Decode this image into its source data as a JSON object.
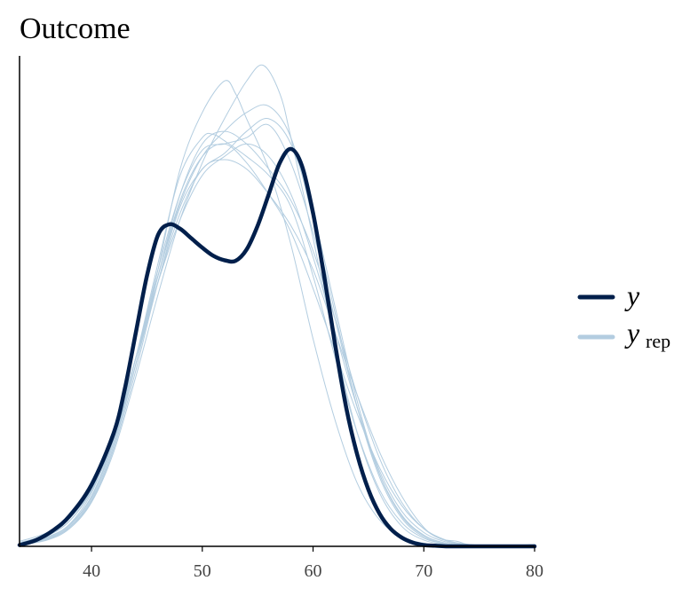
{
  "chart_data": {
    "type": "line",
    "title": "Outcome",
    "xlabel": "",
    "ylabel": "",
    "xlim": [
      33.5,
      80
    ],
    "ylim": [
      0,
      0.078
    ],
    "x_ticks": [
      40,
      50,
      60,
      70,
      80
    ],
    "grid": false,
    "y_axis_labels": false,
    "legend_position": "right",
    "series": [
      {
        "name": "y",
        "color": "#011f4b",
        "role": "observed",
        "x": [
          33.5,
          35,
          36.5,
          38,
          40,
          42,
          43,
          44,
          45,
          46,
          47,
          48,
          49,
          50,
          51,
          52,
          53,
          54,
          55,
          56,
          57,
          58,
          59,
          60,
          61,
          62,
          63,
          64,
          65,
          66,
          67,
          68,
          69,
          70,
          71,
          72,
          74,
          76,
          78,
          80
        ],
        "y": [
          0.0002,
          0.001,
          0.0025,
          0.0048,
          0.0098,
          0.018,
          0.025,
          0.034,
          0.043,
          0.0495,
          0.0512,
          0.0505,
          0.049,
          0.0475,
          0.0462,
          0.0455,
          0.0454,
          0.0472,
          0.051,
          0.056,
          0.061,
          0.0632,
          0.0605,
          0.053,
          0.043,
          0.032,
          0.022,
          0.0145,
          0.009,
          0.0052,
          0.0028,
          0.0014,
          0.0006,
          0.0002,
          0.0001,
          0,
          0,
          0,
          0,
          0
        ]
      },
      {
        "name": "y_rep",
        "color": "#b3cde0",
        "role": "replicated",
        "x": [
          33.5,
          36,
          38,
          40,
          42,
          44,
          46,
          48,
          50,
          52,
          54,
          56,
          58,
          60,
          62,
          64,
          66,
          68,
          70,
          72,
          74,
          76,
          78,
          80
        ],
        "y": [
          0.0006,
          0.0018,
          0.004,
          0.009,
          0.018,
          0.03,
          0.043,
          0.0545,
          0.062,
          0.066,
          0.069,
          0.07,
          0.065,
          0.052,
          0.037,
          0.022,
          0.011,
          0.0045,
          0.0015,
          0.0004,
          0.0001,
          0,
          0,
          0
        ]
      },
      {
        "name": "y_rep",
        "color": "#b3cde0",
        "role": "replicated",
        "x": [
          33.5,
          36,
          38,
          40,
          42,
          44,
          46,
          48,
          50,
          52,
          53,
          54,
          56,
          58,
          60,
          62,
          64,
          66,
          68,
          70,
          72,
          74,
          76,
          78,
          80
        ],
        "y": [
          0.0003,
          0.0012,
          0.003,
          0.0075,
          0.016,
          0.029,
          0.044,
          0.06,
          0.069,
          0.074,
          0.072,
          0.068,
          0.06,
          0.048,
          0.033,
          0.02,
          0.01,
          0.0042,
          0.0015,
          0.0005,
          0.0001,
          0,
          0,
          0,
          0
        ]
      },
      {
        "name": "y_rep",
        "color": "#b3cde0",
        "role": "replicated",
        "x": [
          33.5,
          36,
          38,
          40,
          42,
          44,
          46,
          48,
          50,
          52,
          54,
          55.5,
          57,
          58,
          60,
          62,
          64,
          66,
          68,
          70,
          72,
          74,
          76,
          78,
          80
        ],
        "y": [
          0.0002,
          0.001,
          0.0028,
          0.007,
          0.015,
          0.027,
          0.04,
          0.052,
          0.061,
          0.068,
          0.074,
          0.0765,
          0.072,
          0.065,
          0.049,
          0.032,
          0.018,
          0.0085,
          0.0032,
          0.001,
          0.0003,
          0.0001,
          0,
          0,
          0
        ]
      },
      {
        "name": "y_rep",
        "color": "#b3cde0",
        "role": "replicated",
        "x": [
          33.5,
          36,
          38,
          40,
          42,
          44,
          46,
          48,
          50,
          52,
          54,
          56,
          58,
          60,
          62,
          64,
          66,
          68,
          70,
          72,
          74,
          76,
          78,
          80
        ],
        "y": [
          0.0005,
          0.0015,
          0.0035,
          0.0085,
          0.0175,
          0.03,
          0.044,
          0.056,
          0.063,
          0.064,
          0.065,
          0.067,
          0.061,
          0.05,
          0.036,
          0.022,
          0.0115,
          0.005,
          0.0018,
          0.0005,
          0.0001,
          0,
          0,
          0
        ]
      },
      {
        "name": "y_rep",
        "color": "#b3cde0",
        "role": "replicated",
        "x": [
          33.5,
          36,
          38,
          40,
          42,
          44,
          46,
          48,
          50,
          51,
          52,
          54,
          56,
          58,
          60,
          62,
          64,
          66,
          68,
          70,
          72,
          74,
          76,
          78,
          80
        ],
        "y": [
          0.0004,
          0.0014,
          0.0034,
          0.008,
          0.017,
          0.03,
          0.045,
          0.059,
          0.065,
          0.0655,
          0.0645,
          0.062,
          0.059,
          0.054,
          0.043,
          0.03,
          0.018,
          0.009,
          0.0038,
          0.0013,
          0.0004,
          0.0001,
          0,
          0,
          0
        ]
      },
      {
        "name": "y_rep",
        "color": "#b3cde0",
        "role": "replicated",
        "x": [
          33.5,
          36,
          38,
          40,
          42,
          44,
          46,
          48,
          50,
          52,
          54,
          56,
          58,
          60,
          62,
          64,
          66,
          68,
          70,
          72,
          74,
          76,
          78,
          80
        ],
        "y": [
          0.0008,
          0.0022,
          0.0048,
          0.0095,
          0.018,
          0.03,
          0.043,
          0.055,
          0.062,
          0.064,
          0.061,
          0.056,
          0.05,
          0.041,
          0.031,
          0.021,
          0.0125,
          0.0065,
          0.0028,
          0.001,
          0.0003,
          0.0001,
          0.0001,
          0.0003
        ]
      },
      {
        "name": "y_rep",
        "color": "#b3cde0",
        "role": "replicated",
        "x": [
          33.5,
          36,
          38,
          40,
          42,
          44,
          46,
          48,
          50,
          52,
          54,
          56,
          58,
          60,
          62,
          64,
          66,
          68,
          70,
          72,
          74,
          76,
          78,
          80
        ],
        "y": [
          0.0003,
          0.0011,
          0.003,
          0.0072,
          0.0155,
          0.028,
          0.042,
          0.054,
          0.06,
          0.0625,
          0.066,
          0.068,
          0.064,
          0.053,
          0.038,
          0.023,
          0.0115,
          0.0048,
          0.0017,
          0.0005,
          0.0001,
          0,
          0,
          0
        ]
      },
      {
        "name": "y_rep",
        "color": "#b3cde0",
        "role": "replicated",
        "x": [
          33.5,
          36,
          38,
          40,
          42,
          44,
          46,
          48,
          50,
          52,
          54,
          56,
          58,
          60,
          62,
          64,
          66,
          68,
          70,
          71.5,
          73,
          74,
          76,
          78,
          80
        ],
        "y": [
          0.0005,
          0.0017,
          0.004,
          0.0088,
          0.017,
          0.029,
          0.042,
          0.053,
          0.06,
          0.0615,
          0.06,
          0.056,
          0.051,
          0.044,
          0.034,
          0.024,
          0.015,
          0.008,
          0.003,
          0.0012,
          0.0008,
          0.0003,
          0.0001,
          0,
          0
        ]
      },
      {
        "name": "y_rep",
        "color": "#b3cde0",
        "role": "replicated",
        "x": [
          33.5,
          36,
          38,
          40,
          42,
          44,
          46,
          48,
          50,
          52,
          54,
          56,
          58,
          60,
          62,
          64,
          66,
          68,
          70,
          72,
          74,
          76,
          78,
          80
        ],
        "y": [
          0.0004,
          0.0013,
          0.0032,
          0.0078,
          0.0165,
          0.029,
          0.043,
          0.056,
          0.064,
          0.066,
          0.064,
          0.06,
          0.055,
          0.047,
          0.036,
          0.024,
          0.014,
          0.007,
          0.0028,
          0.0009,
          0.0002,
          0,
          0,
          0
        ]
      },
      {
        "name": "y_rep",
        "color": "#b3cde0",
        "role": "replicated",
        "x": [
          33.5,
          36,
          38,
          40,
          42,
          44,
          46,
          48,
          50,
          52,
          54,
          56,
          58,
          60,
          62,
          64,
          66,
          68,
          70,
          72,
          74,
          76,
          78,
          80
        ],
        "y": [
          0.0006,
          0.0019,
          0.0044,
          0.0092,
          0.018,
          0.03,
          0.042,
          0.052,
          0.059,
          0.062,
          0.064,
          0.062,
          0.056,
          0.046,
          0.034,
          0.022,
          0.012,
          0.0056,
          0.0022,
          0.0007,
          0.0002,
          0,
          0,
          0
        ]
      }
    ]
  },
  "legend": {
    "observed_label": "y",
    "replicated_label": "y",
    "replicated_subscript": "rep"
  }
}
